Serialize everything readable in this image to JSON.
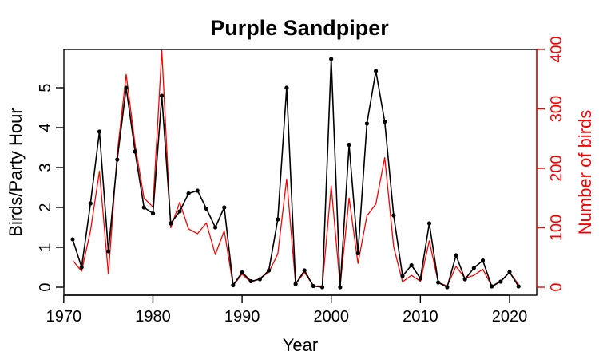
{
  "chart_data": {
    "type": "line",
    "title": "Purple Sandpiper",
    "xlabel": "Year",
    "ylabel_left": "Birds/Party Hour",
    "ylabel_right": "Number of birds",
    "xlim": [
      1970,
      2022
    ],
    "ylim_left": [
      0,
      5.75
    ],
    "ylim_right": [
      0,
      400
    ],
    "x_ticks": [
      1970,
      1980,
      1990,
      2000,
      2010,
      2020
    ],
    "y_left_ticks": [
      0,
      1,
      2,
      3,
      4,
      5
    ],
    "y_right_ticks": [
      0,
      100,
      200,
      300,
      400
    ],
    "colors": {
      "left": "#000000",
      "right": "#ff0000"
    },
    "x": [
      1971,
      1972,
      1973,
      1974,
      1975,
      1976,
      1977,
      1978,
      1979,
      1980,
      1981,
      1982,
      1983,
      1984,
      1985,
      1986,
      1987,
      1988,
      1989,
      1990,
      1991,
      1992,
      1993,
      1994,
      1995,
      1996,
      1997,
      1998,
      1999,
      2000,
      2001,
      2002,
      2003,
      2004,
      2005,
      2006,
      2007,
      2008,
      2009,
      2010,
      2011,
      2012,
      2013,
      2014,
      2015,
      2016,
      2017,
      2018,
      2019,
      2020,
      2021
    ],
    "series": [
      {
        "axis": "left",
        "values": [
          1.2,
          0.5,
          2.1,
          3.9,
          0.9,
          3.2,
          5.0,
          3.4,
          2.0,
          1.85,
          4.8,
          1.6,
          1.9,
          2.35,
          2.42,
          1.97,
          1.5,
          2.0,
          0.05,
          0.37,
          0.15,
          0.2,
          0.42,
          1.7,
          5.0,
          0.08,
          0.42,
          0.03,
          0.0,
          5.72,
          0.0,
          3.57,
          0.85,
          4.1,
          5.42,
          4.15,
          1.8,
          0.28,
          0.55,
          0.22,
          1.6,
          0.12,
          0.0,
          0.8,
          0.2,
          0.48,
          0.67,
          0.02,
          0.14,
          0.38,
          0.02
        ]
      },
      {
        "axis": "right",
        "values": [
          45,
          27,
          95,
          195,
          22,
          225,
          358,
          240,
          150,
          135,
          398,
          100,
          143,
          98,
          90,
          108,
          55,
          95,
          3,
          22,
          8,
          15,
          25,
          56,
          182,
          5,
          25,
          2,
          2,
          170,
          2,
          150,
          40,
          120,
          140,
          218,
          68,
          9,
          20,
          10,
          78,
          8,
          2,
          35,
          15,
          20,
          30,
          2,
          10,
          25,
          5
        ]
      }
    ]
  }
}
